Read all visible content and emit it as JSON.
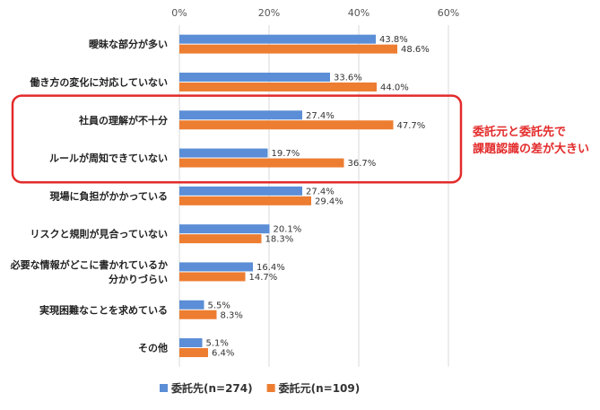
{
  "chart_data": {
    "type": "bar",
    "orientation": "horizontal",
    "title": "",
    "xlabel": "",
    "ylabel": "",
    "xlim": [
      0,
      60
    ],
    "x_ticks": [
      "0%",
      "20%",
      "40%",
      "60%"
    ],
    "x_tick_values": [
      0,
      20,
      40,
      60
    ],
    "grid": true,
    "categories": [
      [
        "曖昧な部分が多い"
      ],
      [
        "働き方の変化に対応していない"
      ],
      [
        "社員の理解が不十分"
      ],
      [
        "ルールが周知できていない"
      ],
      [
        "現場に負担がかかっている"
      ],
      [
        "リスクと規則が見合っていない"
      ],
      [
        "必要な情報がどこに書かれているか",
        "分かりづらい"
      ],
      [
        "実現困難なことを求めている"
      ],
      [
        "その他"
      ]
    ],
    "series": [
      {
        "name": "委託先(n=274)",
        "color": "#5b8ed6",
        "values": [
          43.8,
          33.6,
          27.4,
          19.7,
          27.4,
          20.1,
          16.4,
          5.5,
          5.1
        ],
        "labels": [
          "43.8%",
          "33.6%",
          "27.4%",
          "19.7%",
          "27.4%",
          "20.1%",
          "16.4%",
          "5.5%",
          "5.1%"
        ]
      },
      {
        "name": "委託元(n=109)",
        "color": "#ed7d31",
        "values": [
          48.6,
          44.0,
          47.7,
          36.7,
          29.4,
          18.3,
          14.7,
          8.3,
          6.4
        ],
        "labels": [
          "48.6%",
          "44.0%",
          "47.7%",
          "36.7%",
          "29.4%",
          "18.3%",
          "14.7%",
          "8.3%",
          "6.4%"
        ]
      }
    ],
    "legend_position": "bottom",
    "highlight": {
      "categories": [
        2,
        3
      ],
      "color": "#e32b2b",
      "text": [
        "委託元と委託先で",
        "課題認識の差が大きい"
      ]
    }
  }
}
